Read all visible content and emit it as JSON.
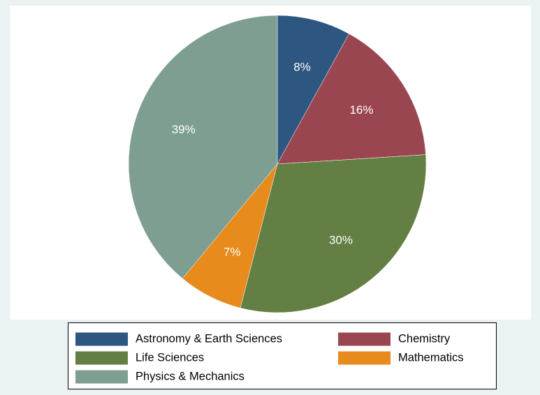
{
  "chart_data": {
    "type": "pie",
    "categories": [
      "Astronomy & Earth Sciences",
      "Chemistry",
      "Life Sciences",
      "Mathematics",
      "Physics & Mechanics"
    ],
    "values": [
      8,
      16,
      30,
      7,
      39
    ],
    "value_labels": [
      "8%",
      "16%",
      "30%",
      "7%",
      "39%"
    ],
    "colors": [
      "#2d5680",
      "#9a4651",
      "#637f44",
      "#e78b1d",
      "#7f9e92"
    ]
  }
}
